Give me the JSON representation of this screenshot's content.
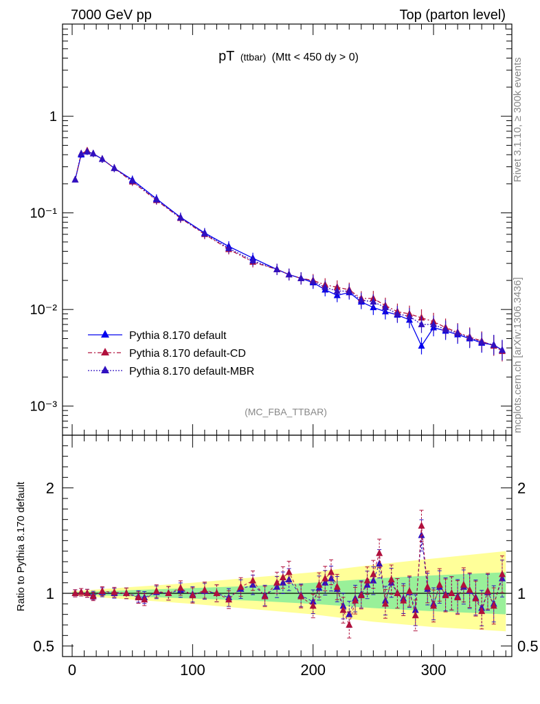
{
  "header": {
    "left": "7000 GeV pp",
    "right": "Top (parton level)"
  },
  "title": {
    "main": "pT",
    "sub1": "(ttbar)",
    "sub2": "(Mtt < 450 dy > 0)"
  },
  "side_labels": {
    "rivet": "Rivet 3.1.10, ≥ 300k events",
    "mcplots": "mcplots.cern.ch [arXiv:1306.3436]"
  },
  "analysis_id": "(MC_FBA_TTBAR)",
  "legend": [
    {
      "label": "Pythia 8.170 default",
      "color": "#0000ee",
      "style": "solid"
    },
    {
      "label": "Pythia 8.170 default-CD",
      "color": "#b0103c",
      "style": "dashdot"
    },
    {
      "label": "Pythia 8.170 default-MBR",
      "color": "#3010c0",
      "style": "dotted"
    }
  ],
  "colors": {
    "default": "#0000ee",
    "cd": "#b0103c",
    "mbr": "#3010c0",
    "band_inner": "#99f099",
    "band_outer": "#ffff99"
  },
  "chart_data": [
    {
      "type": "line",
      "panel": "main",
      "yscale": "log",
      "xlim": [
        -8,
        365
      ],
      "ylim": [
        0.0005,
        9
      ],
      "ytick_labels": [
        "1",
        "10⁻¹",
        "10⁻²",
        "10⁻³"
      ],
      "ytick_values": [
        1,
        0.1,
        0.01,
        0.001
      ],
      "series": [
        {
          "name": "Pythia 8.170 default",
          "color": "#0000ee",
          "x": [
            2.5,
            7.5,
            12.5,
            17.5,
            25,
            35,
            50,
            70,
            90,
            110,
            130,
            150,
            170,
            180,
            190,
            200,
            210,
            220,
            230,
            240,
            250,
            260,
            270,
            280,
            290,
            300,
            310,
            320,
            330,
            340,
            350,
            357
          ],
          "y": [
            0.22,
            0.4,
            0.43,
            0.41,
            0.36,
            0.29,
            0.22,
            0.14,
            0.09,
            0.062,
            0.045,
            0.034,
            0.026,
            0.023,
            0.021,
            0.019,
            0.016,
            0.014,
            0.015,
            0.012,
            0.0105,
            0.0095,
            0.0088,
            0.0078,
            0.0042,
            0.0065,
            0.006,
            0.0055,
            0.005,
            0.0045,
            0.0043,
            0.0038
          ]
        },
        {
          "name": "Pythia 8.170 default-CD",
          "color": "#b0103c",
          "x": [
            2.5,
            7.5,
            12.5,
            17.5,
            25,
            35,
            50,
            70,
            90,
            110,
            130,
            150,
            170,
            180,
            190,
            200,
            210,
            220,
            230,
            240,
            250,
            260,
            270,
            280,
            290,
            300,
            310,
            320,
            330,
            340,
            350,
            357
          ],
          "y": [
            0.22,
            0.41,
            0.44,
            0.41,
            0.36,
            0.29,
            0.21,
            0.135,
            0.088,
            0.06,
            0.042,
            0.031,
            0.026,
            0.023,
            0.021,
            0.02,
            0.018,
            0.017,
            0.016,
            0.013,
            0.013,
            0.011,
            0.0095,
            0.009,
            0.0082,
            0.0075,
            0.0065,
            0.0058,
            0.0052,
            0.0047,
            0.0042,
            0.0037
          ]
        },
        {
          "name": "Pythia 8.170 default-MBR",
          "color": "#3010c0",
          "x": [
            2.5,
            7.5,
            12.5,
            17.5,
            25,
            35,
            50,
            70,
            90,
            110,
            130,
            150,
            170,
            180,
            190,
            200,
            210,
            220,
            230,
            240,
            250,
            260,
            270,
            280,
            290,
            300,
            310,
            320,
            330,
            340,
            350,
            357
          ],
          "y": [
            0.22,
            0.41,
            0.43,
            0.41,
            0.36,
            0.29,
            0.215,
            0.137,
            0.089,
            0.061,
            0.043,
            0.032,
            0.026,
            0.023,
            0.021,
            0.0195,
            0.017,
            0.0155,
            0.0155,
            0.0125,
            0.012,
            0.0105,
            0.009,
            0.0085,
            0.007,
            0.007,
            0.0062,
            0.0057,
            0.0051,
            0.0046,
            0.0043,
            0.0038
          ]
        }
      ]
    },
    {
      "type": "line",
      "panel": "ratio",
      "ylabel": "Ratio to Pythia 8.170 default",
      "xlim": [
        -8,
        365
      ],
      "ylim": [
        0.4,
        2.5
      ],
      "ytick_labels": [
        "0.5",
        "1",
        "2"
      ],
      "ytick_values": [
        0.5,
        1,
        2
      ],
      "xtick_labels": [
        "0",
        "100",
        "200",
        "300"
      ],
      "xtick_values": [
        0,
        100,
        200,
        300
      ],
      "band": {
        "x": [
          0,
          50,
          100,
          150,
          200,
          250,
          300,
          360
        ],
        "inner_lo": [
          0.99,
          0.97,
          0.95,
          0.93,
          0.9,
          0.86,
          0.83,
          0.8
        ],
        "inner_hi": [
          1.01,
          1.03,
          1.05,
          1.07,
          1.1,
          1.14,
          1.17,
          1.2
        ],
        "outer_lo": [
          0.98,
          0.94,
          0.9,
          0.85,
          0.8,
          0.73,
          0.68,
          0.64
        ],
        "outer_hi": [
          1.02,
          1.06,
          1.1,
          1.15,
          1.2,
          1.27,
          1.33,
          1.4
        ]
      },
      "series": [
        {
          "name": "Pythia 8.170 default-CD",
          "color": "#b0103c",
          "x": [
            2.5,
            7.5,
            12.5,
            17.5,
            25,
            35,
            45,
            55,
            60,
            70,
            80,
            90,
            100,
            110,
            120,
            130,
            140,
            150,
            160,
            170,
            175,
            180,
            190,
            200,
            205,
            210,
            215,
            220,
            225,
            230,
            235,
            240,
            245,
            250,
            255,
            260,
            265,
            270,
            275,
            280,
            285,
            290,
            295,
            300,
            305,
            310,
            315,
            320,
            325,
            330,
            335,
            340,
            345,
            350,
            357
          ],
          "y": [
            1.0,
            1.01,
            1.0,
            0.97,
            1.02,
            1.01,
            1.0,
            0.96,
            0.94,
            1.02,
            1.0,
            1.05,
            0.98,
            1.03,
            1.0,
            0.94,
            1.06,
            1.12,
            0.97,
            1.1,
            1.15,
            1.2,
            0.97,
            0.88,
            1.08,
            1.14,
            1.2,
            1.06,
            0.84,
            0.7,
            0.93,
            0.98,
            1.12,
            1.18,
            1.38,
            0.9,
            1.13,
            1.0,
            0.93,
            1.02,
            0.79,
            1.64,
            1.06,
            0.88,
            1.08,
            0.98,
            1.0,
            0.96,
            1.08,
            1.03,
            0.95,
            0.83,
            1.02,
            0.88,
            1.18
          ]
        },
        {
          "name": "Pythia 8.170 default-MBR",
          "color": "#3010c0",
          "x": [
            2.5,
            7.5,
            12.5,
            17.5,
            25,
            35,
            45,
            55,
            60,
            70,
            80,
            90,
            100,
            110,
            120,
            130,
            140,
            150,
            160,
            170,
            175,
            180,
            190,
            200,
            205,
            210,
            215,
            220,
            225,
            230,
            235,
            240,
            245,
            250,
            255,
            260,
            265,
            270,
            275,
            280,
            285,
            290,
            295,
            300,
            305,
            310,
            315,
            320,
            325,
            330,
            335,
            340,
            345,
            350,
            357
          ],
          "y": [
            1.0,
            1.01,
            1.0,
            0.98,
            1.01,
            1.0,
            1.0,
            0.97,
            0.96,
            1.01,
            1.0,
            1.03,
            0.99,
            1.02,
            1.0,
            0.96,
            1.04,
            1.08,
            0.98,
            1.06,
            1.1,
            1.13,
            0.98,
            0.92,
            1.05,
            1.1,
            1.14,
            1.04,
            0.88,
            0.8,
            0.95,
            0.99,
            1.08,
            1.12,
            1.28,
            0.93,
            1.1,
            1.0,
            0.95,
            1.01,
            0.84,
            1.55,
            1.04,
            0.9,
            1.06,
            0.99,
            1.0,
            0.97,
            1.06,
            1.02,
            0.96,
            0.86,
            1.01,
            0.9,
            1.14
          ]
        }
      ]
    }
  ]
}
